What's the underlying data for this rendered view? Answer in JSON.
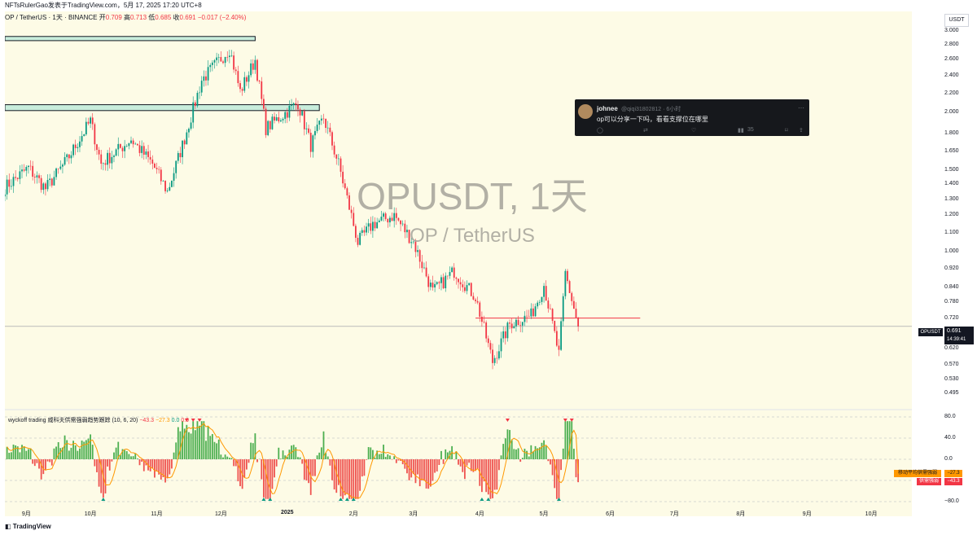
{
  "attribution": "NFTsRulerGao发表于TradingView.com，5月 17, 2025 17:20 UTC+8",
  "symbol_line": {
    "name": "OP / TetherUS · 1天 · BINANCE",
    "open_label": "开",
    "open": "0.709",
    "high_label": "高",
    "high": "0.713",
    "low_label": "低",
    "low": "0.685",
    "close_label": "收",
    "close": "0.691",
    "change": "−0.017 (−2.40%)"
  },
  "currency": "USDT",
  "watermark": {
    "main": "OPUSDT, 1天",
    "sub": "OP / TetherUS"
  },
  "tweet": {
    "name": "johnee",
    "handle": "@qiqi31802812 · 6小时",
    "text": "op可以分享一下吗，看看支撑位在哪里",
    "views": "35",
    "more_icon": "ellipsis-icon",
    "reply_icon": "reply-icon",
    "retweet_icon": "retweet-icon",
    "like_icon": "heart-icon",
    "views_icon": "bar-chart-icon",
    "bookmark_icon": "bookmark-icon",
    "share_icon": "share-icon"
  },
  "last_price": {
    "symbol": "OPUSDT",
    "price": "0.691",
    "countdown": "14:39:41"
  },
  "indicator": {
    "title": "wyckoff trading 威科夫供需强弱趋势跟踪 (10, 6, 20)",
    "v1": "−43.3",
    "v2": "−27.3",
    "v3": "0.0",
    "v4": "0.0",
    "ticks": [
      "80.0",
      "40.0",
      "0.0",
      "−40.0",
      "−80.0"
    ],
    "avg_label": "移动平均供需强弱",
    "avg_value": "−27.3",
    "sd_label": "供需强弱",
    "sd_value": "−43.3"
  },
  "footer": {
    "logo_text": "TradingView"
  },
  "colors": {
    "up": "#089981",
    "down": "#f23645",
    "background": "#fdfbe6",
    "hist_up": "#4caf50",
    "hist_down": "#ef5350",
    "avg_line": "#ff9800",
    "zone_fill": "#c8eddc"
  },
  "chart_data": [
    {
      "type": "candlestick",
      "title": "OPUSDT, 1天",
      "x_ticks": [
        "9月",
        "10月",
        "11月",
        "12月",
        "2025",
        "2月",
        "3月",
        "4月",
        "5月",
        "6月",
        "7月",
        "8月",
        "9月",
        "10月"
      ],
      "y_ticks": [
        3.0,
        2.8,
        2.6,
        2.4,
        2.2,
        2.0,
        1.8,
        1.65,
        1.5,
        1.4,
        1.3,
        1.2,
        1.1,
        1.0,
        0.92,
        0.84,
        0.78,
        0.72,
        0.62,
        0.57,
        0.53,
        0.495
      ],
      "y_scale": "log",
      "ylim": [
        0.47,
        3.1
      ],
      "last_close": 0.691,
      "zones": [
        {
          "from": 2.86,
          "to": 2.92,
          "x_start": "2024-08-22",
          "x_end": "2024-12-17"
        },
        {
          "from": 2.02,
          "to": 2.08,
          "x_start": "2024-08-22",
          "x_end": "2025-01-16"
        }
      ],
      "horizontal_line": {
        "value": 0.72,
        "x_start": "2025-03-30",
        "x_end": "2025-06-15"
      },
      "price_path": [
        [
          "2024-08-22",
          1.38
        ],
        [
          "2024-09-02",
          1.52
        ],
        [
          "2024-09-10",
          1.37
        ],
        [
          "2024-09-20",
          1.58
        ],
        [
          "2024-10-01",
          1.92
        ],
        [
          "2024-10-06",
          1.55
        ],
        [
          "2024-10-20",
          1.75
        ],
        [
          "2024-10-30",
          1.55
        ],
        [
          "2024-11-06",
          1.35
        ],
        [
          "2024-11-14",
          1.76
        ],
        [
          "2024-11-22",
          2.35
        ],
        [
          "2024-12-05",
          2.75
        ],
        [
          "2024-12-10",
          2.22
        ],
        [
          "2024-12-17",
          2.6
        ],
        [
          "2024-12-22",
          1.85
        ],
        [
          "2025-01-06",
          2.1
        ],
        [
          "2025-01-12",
          1.7
        ],
        [
          "2025-01-18",
          1.95
        ],
        [
          "2025-01-25",
          1.55
        ],
        [
          "2025-02-03",
          1.05
        ],
        [
          "2025-02-10",
          1.15
        ],
        [
          "2025-02-20",
          1.2
        ],
        [
          "2025-03-01",
          1.05
        ],
        [
          "2025-03-10",
          0.82
        ],
        [
          "2025-03-20",
          0.91
        ],
        [
          "2025-03-30",
          0.8
        ],
        [
          "2025-04-07",
          0.58
        ],
        [
          "2025-04-15",
          0.7
        ],
        [
          "2025-04-25",
          0.73
        ],
        [
          "2025-05-01",
          0.85
        ],
        [
          "2025-05-08",
          0.6
        ],
        [
          "2025-05-11",
          0.9
        ],
        [
          "2025-05-17",
          0.691
        ]
      ]
    },
    {
      "type": "bar",
      "title": "wyckoff trading 威科夫供需强弱趋势跟踪 (10, 6, 20)",
      "ylim": [
        -80,
        80
      ],
      "y_ticks": [
        80,
        40,
        0,
        -40,
        -80
      ],
      "series": [
        {
          "name": "供需强弱",
          "last_value": -43.3
        },
        {
          "name": "移动平均供需强弱",
          "last_value": -27.3
        }
      ]
    }
  ]
}
